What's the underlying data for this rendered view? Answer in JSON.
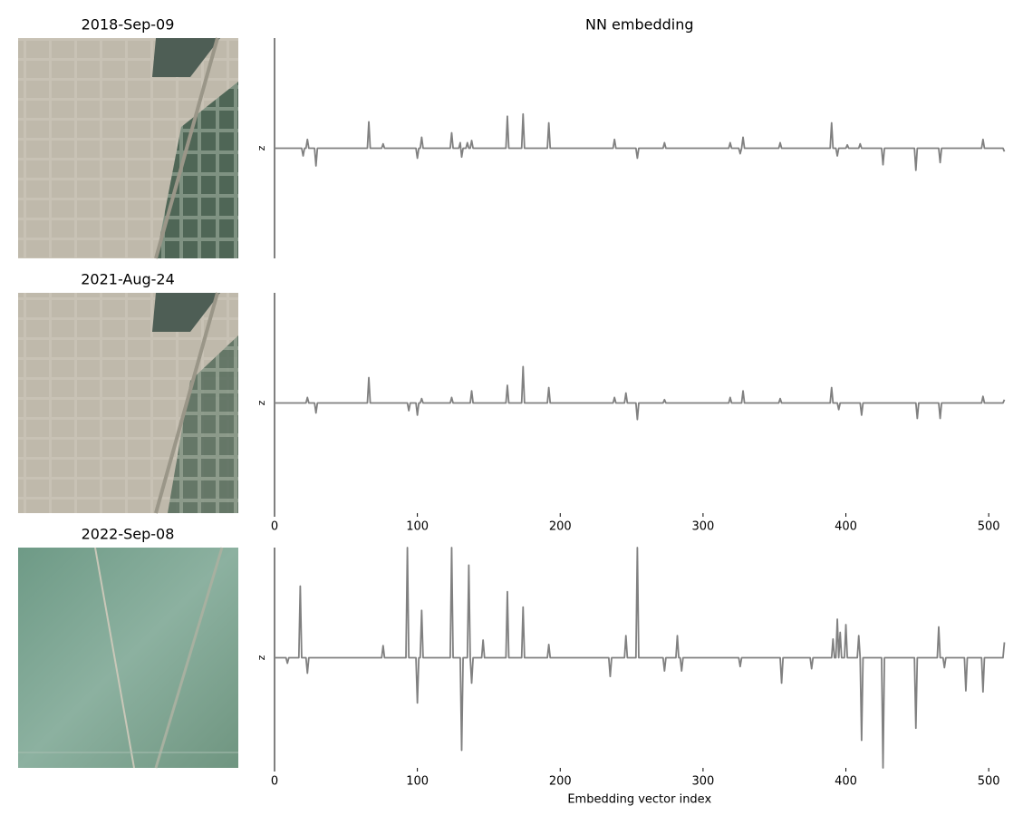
{
  "images": [
    {
      "title": "2018-Sep-09"
    },
    {
      "title": "2021-Aug-24"
    },
    {
      "title": "2022-Sep-08"
    }
  ],
  "chart_data": [
    {
      "type": "line",
      "title": "NN embedding",
      "ylabel": "z",
      "xlim": [
        0,
        511
      ],
      "ylim": [
        -1,
        1
      ],
      "series": [
        {
          "color": "#808080",
          "x": [
            0,
            19,
            20,
            21,
            22,
            23,
            24,
            28,
            29,
            30,
            65,
            66,
            67,
            75,
            76,
            77,
            99,
            100,
            101,
            102,
            103,
            104,
            123,
            124,
            125,
            129,
            130,
            131,
            132,
            134,
            135,
            136,
            137,
            138,
            139,
            162,
            163,
            164,
            173,
            174,
            175,
            191,
            192,
            193,
            237,
            238,
            239,
            253,
            254,
            255,
            272,
            273,
            274,
            318,
            319,
            320,
            325,
            326,
            327,
            328,
            329,
            353,
            354,
            355,
            389,
            390,
            391,
            393,
            394,
            395,
            400,
            401,
            402,
            409,
            410,
            411,
            425,
            426,
            427,
            448,
            449,
            450,
            465,
            466,
            467,
            495,
            496,
            497,
            510,
            511
          ],
          "values": [
            0,
            0,
            -0.07,
            0,
            0,
            0.08,
            0,
            0,
            -0.16,
            0,
            0,
            0.24,
            0,
            0,
            0.04,
            0,
            0,
            -0.09,
            0,
            0,
            0.1,
            0,
            0,
            0.14,
            0,
            0,
            0.05,
            -0.08,
            0,
            0,
            0.05,
            0,
            0,
            0.07,
            0,
            0,
            0.29,
            0,
            0,
            0.31,
            0,
            0,
            0.23,
            0,
            0,
            0.08,
            0,
            0,
            -0.09,
            0,
            0,
            0.05,
            0,
            0,
            0.05,
            0,
            0,
            -0.05,
            0,
            0.1,
            0,
            0,
            0.05,
            0,
            0,
            0.23,
            0,
            0,
            -0.07,
            0,
            0,
            0.03,
            0,
            0,
            0.04,
            0,
            0,
            -0.15,
            0,
            0,
            -0.2,
            0,
            0,
            -0.13,
            0,
            0,
            0.08,
            0,
            0,
            -0.03
          ]
        }
      ]
    },
    {
      "type": "line",
      "ylabel": "z",
      "xlim": [
        0,
        511
      ],
      "ylim": [
        -1,
        1
      ],
      "xticks": [
        0,
        100,
        200,
        300,
        400,
        500
      ],
      "series": [
        {
          "color": "#808080",
          "x": [
            0,
            22,
            23,
            24,
            28,
            29,
            30,
            65,
            66,
            67,
            93,
            94,
            95,
            99,
            100,
            101,
            102,
            103,
            104,
            123,
            124,
            125,
            137,
            138,
            139,
            162,
            163,
            164,
            173,
            174,
            175,
            191,
            192,
            193,
            237,
            238,
            239,
            245,
            246,
            247,
            253,
            254,
            255,
            272,
            273,
            274,
            318,
            319,
            320,
            327,
            328,
            329,
            353,
            354,
            355,
            389,
            390,
            391,
            394,
            395,
            396,
            410,
            411,
            412,
            449,
            450,
            451,
            465,
            466,
            467,
            495,
            496,
            497,
            510,
            511
          ],
          "values": [
            0,
            0,
            0.05,
            0,
            0,
            -0.09,
            0,
            0,
            0.23,
            0,
            0,
            -0.07,
            0,
            0,
            -0.11,
            0,
            0,
            0.04,
            0,
            0,
            0.05,
            0,
            0,
            0.11,
            0,
            0,
            0.16,
            0,
            0,
            0.33,
            0,
            0,
            0.14,
            0,
            0,
            0.05,
            0,
            0,
            0.09,
            0,
            0,
            -0.15,
            0,
            0,
            0.03,
            0,
            0,
            0.05,
            0,
            0,
            0.11,
            0,
            0,
            0.04,
            0,
            0,
            0.14,
            0,
            0,
            -0.06,
            0,
            0,
            -0.11,
            0,
            0,
            -0.14,
            0,
            0,
            -0.14,
            0,
            0,
            0.06,
            0,
            0,
            0.03
          ]
        }
      ]
    },
    {
      "type": "line",
      "ylabel": "z",
      "xlabel": "Embedding vector index",
      "xlim": [
        0,
        511
      ],
      "ylim": [
        -1,
        1
      ],
      "xticks": [
        0,
        100,
        200,
        300,
        400,
        500
      ],
      "series": [
        {
          "color": "#808080",
          "x": [
            0,
            8,
            9,
            10,
            17,
            18,
            19,
            22,
            23,
            24,
            75,
            76,
            77,
            92,
            93,
            94,
            99,
            100,
            101,
            102,
            103,
            104,
            123,
            124,
            125,
            130,
            131,
            132,
            135,
            136,
            137,
            138,
            139,
            145,
            146,
            147,
            162,
            163,
            164,
            173,
            174,
            175,
            191,
            192,
            193,
            234,
            235,
            236,
            245,
            246,
            247,
            253,
            254,
            255,
            272,
            273,
            274,
            281,
            282,
            283,
            284,
            285,
            286,
            325,
            326,
            327,
            354,
            355,
            356,
            375,
            376,
            377,
            390,
            391,
            392,
            393,
            394,
            395,
            396,
            397,
            399,
            400,
            401,
            408,
            409,
            410,
            411,
            412,
            425,
            426,
            427,
            448,
            449,
            450,
            464,
            465,
            466,
            468,
            469,
            470,
            483,
            484,
            485,
            495,
            496,
            497,
            510,
            511
          ],
          "values": [
            0,
            0,
            -0.05,
            0,
            0,
            0.65,
            0,
            0,
            -0.14,
            0,
            0,
            0.11,
            0,
            0,
            1,
            0,
            0,
            -0.41,
            0,
            0,
            0.43,
            0,
            0,
            1,
            0,
            0,
            -0.84,
            0,
            0,
            0.84,
            0,
            -0.23,
            0,
            0,
            0.16,
            0,
            0,
            0.6,
            0,
            0,
            0.46,
            0,
            0,
            0.12,
            0,
            0,
            -0.17,
            0,
            0,
            0.2,
            0,
            0,
            1,
            0,
            0,
            -0.12,
            0,
            0,
            0.2,
            0,
            0,
            -0.12,
            0,
            0,
            -0.08,
            0,
            0,
            -0.23,
            0,
            0,
            -0.1,
            0,
            0,
            0.17,
            0,
            0,
            0.35,
            0,
            0.23,
            0,
            0,
            0.3,
            0,
            0,
            0.2,
            0,
            -0.75,
            0,
            0,
            -1,
            0,
            0,
            -0.64,
            0,
            0,
            0.28,
            0,
            0,
            -0.09,
            0,
            0,
            -0.3,
            0,
            0,
            -0.31,
            0,
            0,
            0.14
          ]
        }
      ]
    }
  ]
}
